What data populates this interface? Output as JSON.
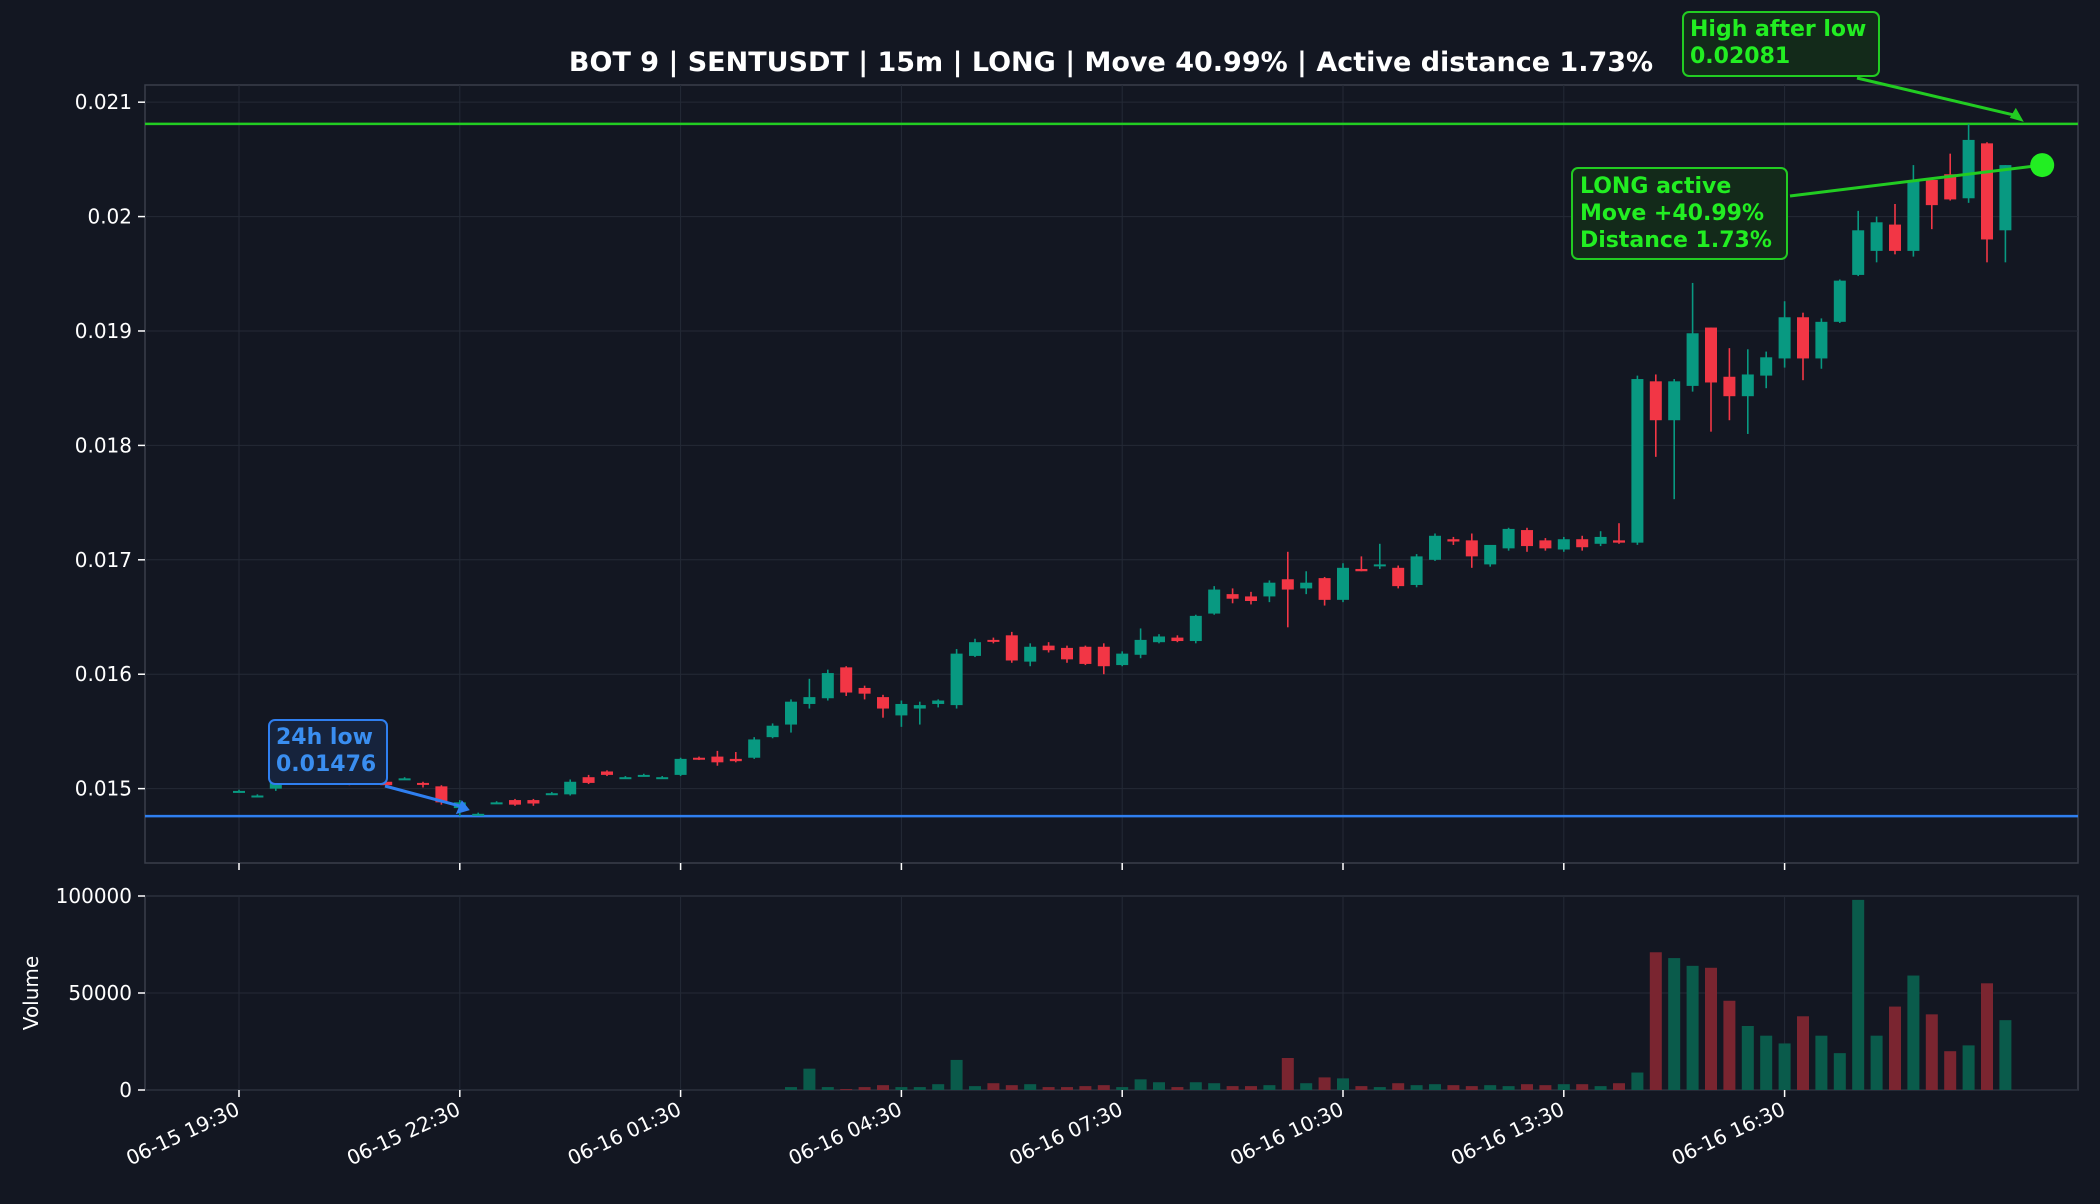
{
  "chart_data": {
    "type": "candlestick",
    "title": "BOT 9 | SENTUSDT | 15m | LONG | Move 40.99% | Active distance 1.73%",
    "price_ylim": [
      0.01435,
      0.02115
    ],
    "price_ticks": [
      "0.015",
      "0.016",
      "0.017",
      "0.018",
      "0.019",
      "0.02",
      "0.021"
    ],
    "volume_ylabel": "Volume",
    "volume_ylim": [
      0,
      100000
    ],
    "volume_ticks": [
      "0",
      "50000",
      "100000"
    ],
    "x_ticks": [
      "06-15 19:30",
      "06-15 22:30",
      "06-16 01:30",
      "06-16 04:30",
      "06-16 07:30",
      "06-16 10:30",
      "06-16 13:30",
      "06-16 16:30"
    ],
    "x_tick_index": [
      0,
      12,
      24,
      36,
      48,
      60,
      72,
      84
    ],
    "grid": true,
    "colors": {
      "up": "#089981",
      "down": "#f23645",
      "low_line": "#2f7ff0",
      "high_line": "#22cc22",
      "annotation_green": "#22ee22",
      "annotation_blue": "#3a8ef0",
      "background": "#131722"
    },
    "candles": [
      {
        "o": 0.01498,
        "h": 0.01499,
        "l": 0.01497,
        "c": 0.01498,
        "v": 0
      },
      {
        "o": 0.01494,
        "h": 0.01495,
        "l": 0.01493,
        "c": 0.01494,
        "v": 0
      },
      {
        "o": 0.015,
        "h": 0.01508,
        "l": 0.01498,
        "c": 0.01506,
        "v": 0
      },
      {
        "o": 0.0151,
        "h": 0.01512,
        "l": 0.01504,
        "c": 0.01506,
        "v": 0
      },
      {
        "o": 0.01507,
        "h": 0.01508,
        "l": 0.01505,
        "c": 0.01506,
        "v": 0
      },
      {
        "o": 0.01506,
        "h": 0.01507,
        "l": 0.01504,
        "c": 0.01505,
        "v": 0
      },
      {
        "o": 0.01505,
        "h": 0.01506,
        "l": 0.01503,
        "c": 0.01504,
        "v": 0
      },
      {
        "o": 0.01506,
        "h": 0.01507,
        "l": 0.01505,
        "c": 0.01506,
        "v": 0
      },
      {
        "o": 0.01506,
        "h": 0.01508,
        "l": 0.01501,
        "c": 0.01503,
        "v": 0
      },
      {
        "o": 0.01509,
        "h": 0.0151,
        "l": 0.01508,
        "c": 0.01509,
        "v": 0
      },
      {
        "o": 0.01505,
        "h": 0.01506,
        "l": 0.01501,
        "c": 0.01504,
        "v": 0
      },
      {
        "o": 0.01502,
        "h": 0.01503,
        "l": 0.01486,
        "c": 0.01488,
        "v": 0
      },
      {
        "o": 0.01483,
        "h": 0.0149,
        "l": 0.01476,
        "c": 0.01488,
        "v": 0
      },
      {
        "o": 0.01478,
        "h": 0.01479,
        "l": 0.01477,
        "c": 0.01478,
        "v": 0
      },
      {
        "o": 0.01488,
        "h": 0.01489,
        "l": 0.01487,
        "c": 0.01488,
        "v": 0
      },
      {
        "o": 0.0149,
        "h": 0.01491,
        "l": 0.01485,
        "c": 0.01486,
        "v": 0
      },
      {
        "o": 0.0149,
        "h": 0.01491,
        "l": 0.01485,
        "c": 0.01487,
        "v": 0
      },
      {
        "o": 0.01496,
        "h": 0.01497,
        "l": 0.01495,
        "c": 0.01496,
        "v": 0
      },
      {
        "o": 0.01495,
        "h": 0.01508,
        "l": 0.01494,
        "c": 0.01506,
        "v": 0
      },
      {
        "o": 0.0151,
        "h": 0.01512,
        "l": 0.01504,
        "c": 0.01505,
        "v": 0
      },
      {
        "o": 0.01515,
        "h": 0.01516,
        "l": 0.01511,
        "c": 0.01512,
        "v": 0
      },
      {
        "o": 0.0151,
        "h": 0.01511,
        "l": 0.01509,
        "c": 0.0151,
        "v": 0
      },
      {
        "o": 0.01512,
        "h": 0.01513,
        "l": 0.01511,
        "c": 0.01512,
        "v": 0
      },
      {
        "o": 0.0151,
        "h": 0.01511,
        "l": 0.01509,
        "c": 0.0151,
        "v": 0
      },
      {
        "o": 0.01512,
        "h": 0.01527,
        "l": 0.01511,
        "c": 0.01526,
        "v": 0
      },
      {
        "o": 0.01527,
        "h": 0.01528,
        "l": 0.01525,
        "c": 0.01526,
        "v": 0
      },
      {
        "o": 0.01528,
        "h": 0.01533,
        "l": 0.0152,
        "c": 0.01523,
        "v": 0
      },
      {
        "o": 0.01526,
        "h": 0.01532,
        "l": 0.01523,
        "c": 0.01524,
        "v": 0
      },
      {
        "o": 0.01527,
        "h": 0.01545,
        "l": 0.01526,
        "c": 0.01543,
        "v": 0
      },
      {
        "o": 0.01545,
        "h": 0.01557,
        "l": 0.01544,
        "c": 0.01555,
        "v": 0
      },
      {
        "o": 0.01556,
        "h": 0.01578,
        "l": 0.01549,
        "c": 0.01576,
        "v": 1500
      },
      {
        "o": 0.01574,
        "h": 0.01596,
        "l": 0.0157,
        "c": 0.0158,
        "v": 11000
      },
      {
        "o": 0.01579,
        "h": 0.01604,
        "l": 0.01577,
        "c": 0.01601,
        "v": 1500
      },
      {
        "o": 0.01606,
        "h": 0.01607,
        "l": 0.01581,
        "c": 0.01584,
        "v": 500
      },
      {
        "o": 0.01588,
        "h": 0.0159,
        "l": 0.01578,
        "c": 0.01583,
        "v": 1500
      },
      {
        "o": 0.0158,
        "h": 0.01582,
        "l": 0.01562,
        "c": 0.0157,
        "v": 2500
      },
      {
        "o": 0.01564,
        "h": 0.01577,
        "l": 0.01554,
        "c": 0.01574,
        "v": 1500
      },
      {
        "o": 0.0157,
        "h": 0.01576,
        "l": 0.01556,
        "c": 0.01573,
        "v": 1500
      },
      {
        "o": 0.01574,
        "h": 0.01578,
        "l": 0.01571,
        "c": 0.01577,
        "v": 3000
      },
      {
        "o": 0.01573,
        "h": 0.01622,
        "l": 0.0157,
        "c": 0.01618,
        "v": 15500
      },
      {
        "o": 0.01616,
        "h": 0.01631,
        "l": 0.01615,
        "c": 0.01628,
        "v": 2000
      },
      {
        "o": 0.0163,
        "h": 0.01632,
        "l": 0.01627,
        "c": 0.01629,
        "v": 3500
      },
      {
        "o": 0.01634,
        "h": 0.01637,
        "l": 0.0161,
        "c": 0.01612,
        "v": 2500
      },
      {
        "o": 0.01611,
        "h": 0.01627,
        "l": 0.01607,
        "c": 0.01624,
        "v": 3000
      },
      {
        "o": 0.01625,
        "h": 0.01628,
        "l": 0.01619,
        "c": 0.01621,
        "v": 1500
      },
      {
        "o": 0.01623,
        "h": 0.01625,
        "l": 0.0161,
        "c": 0.01613,
        "v": 1500
      },
      {
        "o": 0.01624,
        "h": 0.01625,
        "l": 0.01608,
        "c": 0.01609,
        "v": 2000
      },
      {
        "o": 0.01624,
        "h": 0.01627,
        "l": 0.016,
        "c": 0.01607,
        "v": 2500
      },
      {
        "o": 0.01608,
        "h": 0.0162,
        "l": 0.01607,
        "c": 0.01618,
        "v": 1500
      },
      {
        "o": 0.01617,
        "h": 0.0164,
        "l": 0.01614,
        "c": 0.0163,
        "v": 5500
      },
      {
        "o": 0.01628,
        "h": 0.01635,
        "l": 0.01627,
        "c": 0.01633,
        "v": 4000
      },
      {
        "o": 0.01632,
        "h": 0.01634,
        "l": 0.01628,
        "c": 0.01629,
        "v": 1500
      },
      {
        "o": 0.01629,
        "h": 0.01652,
        "l": 0.01627,
        "c": 0.01651,
        "v": 4000
      },
      {
        "o": 0.01653,
        "h": 0.01677,
        "l": 0.01652,
        "c": 0.01674,
        "v": 3500
      },
      {
        "o": 0.0167,
        "h": 0.01675,
        "l": 0.01662,
        "c": 0.01666,
        "v": 2000
      },
      {
        "o": 0.01668,
        "h": 0.01672,
        "l": 0.01661,
        "c": 0.01664,
        "v": 2000
      },
      {
        "o": 0.01668,
        "h": 0.01682,
        "l": 0.01663,
        "c": 0.0168,
        "v": 2500
      },
      {
        "o": 0.01683,
        "h": 0.01707,
        "l": 0.01641,
        "c": 0.01674,
        "v": 16500
      },
      {
        "o": 0.01675,
        "h": 0.0169,
        "l": 0.0167,
        "c": 0.0168,
        "v": 3500
      },
      {
        "o": 0.01684,
        "h": 0.01685,
        "l": 0.0166,
        "c": 0.01665,
        "v": 6500
      },
      {
        "o": 0.01665,
        "h": 0.01697,
        "l": 0.01663,
        "c": 0.01693,
        "v": 6000
      },
      {
        "o": 0.01692,
        "h": 0.01703,
        "l": 0.0169,
        "c": 0.0169,
        "v": 2000
      },
      {
        "o": 0.01695,
        "h": 0.01714,
        "l": 0.01692,
        "c": 0.01696,
        "v": 1500
      },
      {
        "o": 0.01693,
        "h": 0.01695,
        "l": 0.01675,
        "c": 0.01677,
        "v": 3500
      },
      {
        "o": 0.01678,
        "h": 0.01705,
        "l": 0.01676,
        "c": 0.01703,
        "v": 2500
      },
      {
        "o": 0.017,
        "h": 0.01723,
        "l": 0.01699,
        "c": 0.01721,
        "v": 3000
      },
      {
        "o": 0.01718,
        "h": 0.0172,
        "l": 0.01713,
        "c": 0.01716,
        "v": 2500
      },
      {
        "o": 0.01717,
        "h": 0.01723,
        "l": 0.01693,
        "c": 0.01703,
        "v": 2000
      },
      {
        "o": 0.01696,
        "h": 0.0171,
        "l": 0.01694,
        "c": 0.01713,
        "v": 2500
      },
      {
        "o": 0.0171,
        "h": 0.01728,
        "l": 0.01708,
        "c": 0.01727,
        "v": 2000
      },
      {
        "o": 0.01726,
        "h": 0.01728,
        "l": 0.01707,
        "c": 0.01712,
        "v": 3000
      },
      {
        "o": 0.01717,
        "h": 0.01719,
        "l": 0.01708,
        "c": 0.0171,
        "v": 2500
      },
      {
        "o": 0.01709,
        "h": 0.0172,
        "l": 0.01707,
        "c": 0.01718,
        "v": 3000
      },
      {
        "o": 0.01718,
        "h": 0.01721,
        "l": 0.01708,
        "c": 0.01711,
        "v": 3000
      },
      {
        "o": 0.01714,
        "h": 0.01725,
        "l": 0.01712,
        "c": 0.0172,
        "v": 2000
      },
      {
        "o": 0.01717,
        "h": 0.01732,
        "l": 0.01714,
        "c": 0.01715,
        "v": 3500
      },
      {
        "o": 0.01715,
        "h": 0.01861,
        "l": 0.01713,
        "c": 0.01858,
        "v": 9000
      },
      {
        "o": 0.01856,
        "h": 0.01862,
        "l": 0.0179,
        "c": 0.01822,
        "v": 71000
      },
      {
        "o": 0.01822,
        "h": 0.01858,
        "l": 0.01753,
        "c": 0.01856,
        "v": 68000
      },
      {
        "o": 0.01852,
        "h": 0.01942,
        "l": 0.01847,
        "c": 0.01898,
        "v": 64000
      },
      {
        "o": 0.01903,
        "h": 0.01903,
        "l": 0.01812,
        "c": 0.01855,
        "v": 63000
      },
      {
        "o": 0.0186,
        "h": 0.01885,
        "l": 0.01822,
        "c": 0.01843,
        "v": 46000
      },
      {
        "o": 0.01843,
        "h": 0.01884,
        "l": 0.0181,
        "c": 0.01862,
        "v": 33000
      },
      {
        "o": 0.01861,
        "h": 0.01882,
        "l": 0.0185,
        "c": 0.01877,
        "v": 28000
      },
      {
        "o": 0.01876,
        "h": 0.01926,
        "l": 0.01868,
        "c": 0.01912,
        "v": 24000
      },
      {
        "o": 0.01912,
        "h": 0.01916,
        "l": 0.01857,
        "c": 0.01876,
        "v": 38000
      },
      {
        "o": 0.01876,
        "h": 0.01911,
        "l": 0.01867,
        "c": 0.01908,
        "v": 28000
      },
      {
        "o": 0.01908,
        "h": 0.01945,
        "l": 0.01907,
        "c": 0.01944,
        "v": 19000
      },
      {
        "o": 0.01949,
        "h": 0.02005,
        "l": 0.01948,
        "c": 0.01988,
        "v": 98000
      },
      {
        "o": 0.0197,
        "h": 0.02,
        "l": 0.0196,
        "c": 0.01995,
        "v": 28000
      },
      {
        "o": 0.01993,
        "h": 0.02011,
        "l": 0.01967,
        "c": 0.0197,
        "v": 43000
      },
      {
        "o": 0.0197,
        "h": 0.02045,
        "l": 0.01965,
        "c": 0.02031,
        "v": 59000
      },
      {
        "o": 0.02032,
        "h": 0.02034,
        "l": 0.01989,
        "c": 0.0201,
        "v": 39000
      },
      {
        "o": 0.02037,
        "h": 0.02055,
        "l": 0.02014,
        "c": 0.02015,
        "v": 20000
      },
      {
        "o": 0.02016,
        "h": 0.02081,
        "l": 0.02012,
        "c": 0.02067,
        "v": 23000
      },
      {
        "o": 0.02064,
        "h": 0.02065,
        "l": 0.0196,
        "c": 0.0198,
        "v": 55000
      },
      {
        "o": 0.01988,
        "h": 0.02045,
        "l": 0.0196,
        "c": 0.02045,
        "v": 36000
      }
    ],
    "reference_lines": [
      {
        "name": "24h low",
        "value": 0.01476
      },
      {
        "name": "High after low",
        "value": 0.02081
      }
    ],
    "annotations": {
      "low_label": "24h low",
      "low_value": "0.01476",
      "high_label": "High after low",
      "high_value": "0.02081",
      "active_line1": "LONG active",
      "active_line2": "Move +40.99%",
      "active_line3": "Distance 1.73%"
    },
    "active_marker": {
      "index": 98,
      "price": 0.02045
    }
  }
}
